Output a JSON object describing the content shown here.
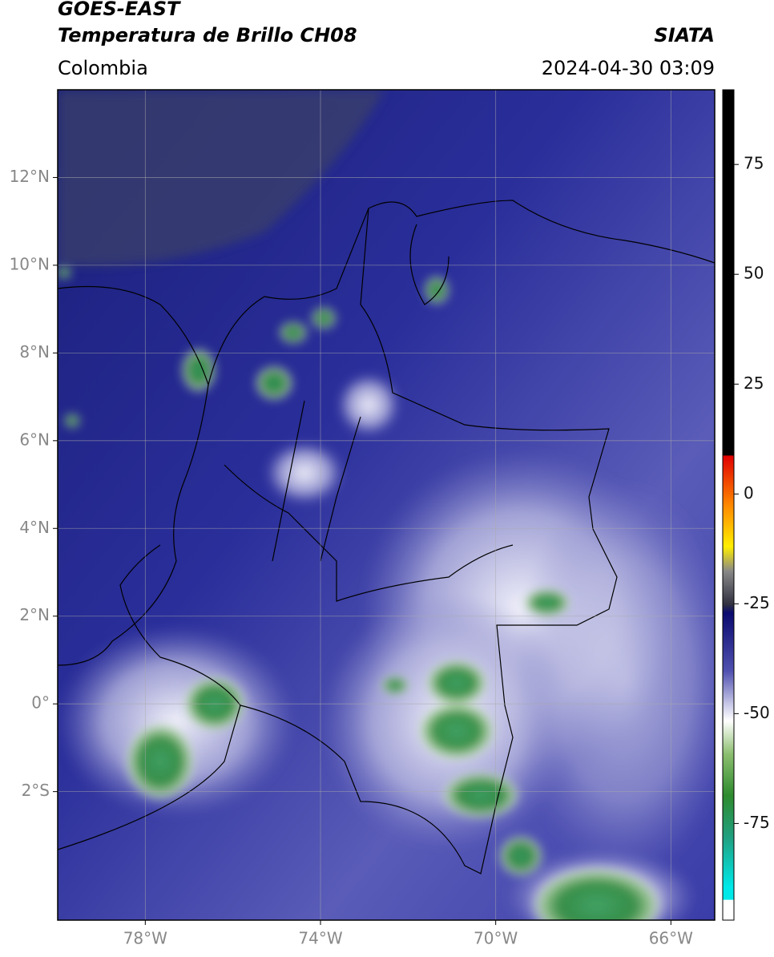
{
  "header": {
    "title": "GOES-EAST",
    "subtitle": "Temperatura de Brillo CH08",
    "region": "Colombia",
    "source": "SIATA",
    "datetime": "2024-04-30 03:09"
  },
  "map": {
    "xlim": [
      -80,
      -65
    ],
    "ylim": [
      -4.93,
      14
    ],
    "xticks": [
      {
        "value": -78,
        "label": "78°W"
      },
      {
        "value": -74,
        "label": "74°W"
      },
      {
        "value": -70,
        "label": "70°W"
      },
      {
        "value": -66,
        "label": "66°W"
      }
    ],
    "yticks": [
      {
        "value": 12,
        "label": "12°N"
      },
      {
        "value": 10,
        "label": "10°N"
      },
      {
        "value": 8,
        "label": "8°N"
      },
      {
        "value": 6,
        "label": "6°N"
      },
      {
        "value": 4,
        "label": "4°N"
      },
      {
        "value": 2,
        "label": "2°N"
      },
      {
        "value": 0,
        "label": "0°"
      },
      {
        "value": -2,
        "label": "2°S"
      }
    ],
    "grid": true
  },
  "colorbar": {
    "lim": [
      -97,
      92
    ],
    "ticks": [
      75,
      50,
      25,
      0,
      -25,
      -50,
      -75
    ]
  }
}
